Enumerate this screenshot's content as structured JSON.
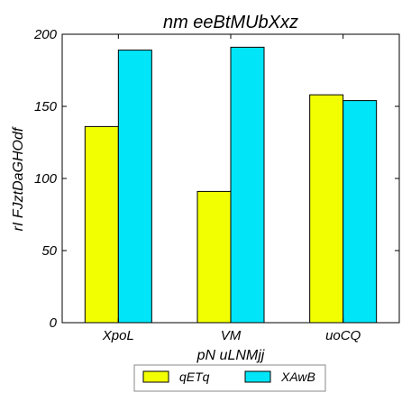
{
  "chart_data": {
    "type": "bar",
    "title": "nm eeBtMUbXxz",
    "xlabel": "pN uLNMjj",
    "ylabel": "rI FJztDaGHOdf",
    "categories": [
      "XpoL",
      "VM",
      "uoCQ"
    ],
    "series": [
      {
        "name": "qETq",
        "color": "#f2ff00",
        "values": [
          136,
          91,
          158
        ]
      },
      {
        "name": "XAwB",
        "color": "#00e5f7",
        "values": [
          189,
          191,
          154
        ]
      }
    ],
    "ylim": [
      0,
      200
    ],
    "yticks": [
      0,
      50,
      100,
      150,
      200
    ],
    "grid": false,
    "legend_position": "bottom-center"
  }
}
